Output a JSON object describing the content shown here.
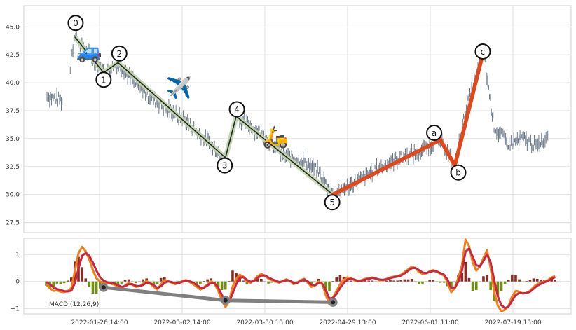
{
  "chart_data": [
    {
      "type": "candlestick",
      "panel": "price",
      "y_ticks": [
        "45.0",
        "42.5",
        "40.0",
        "37.5",
        "35.0",
        "32.5",
        "30.0",
        "27.5"
      ],
      "ylim": [
        26.6,
        46.9
      ],
      "grid": true,
      "wave_labels": [
        "0",
        "1",
        "2",
        "3",
        "4",
        "5",
        "a",
        "b",
        "c"
      ],
      "impulse_wave": [
        {
          "label": "0",
          "x": 8,
          "y": 44.1
        },
        {
          "label": "1",
          "x": 16,
          "y": 40.9
        },
        {
          "label": "2",
          "x": 20,
          "y": 41.8
        },
        {
          "label": "3",
          "x": 50,
          "y": 33.3
        },
        {
          "label": "4",
          "x": 53,
          "y": 37.0
        },
        {
          "label": "5",
          "x": 80,
          "y": 30.0
        }
      ],
      "corrective_wave": [
        {
          "label": "5",
          "x": 80,
          "y": 30.0
        },
        {
          "label": "a",
          "x": 110,
          "y": 34.9
        },
        {
          "label": "b",
          "x": 114,
          "y": 32.6
        },
        {
          "label": "c",
          "x": 122,
          "y": 42.8
        }
      ],
      "emoji_annotations": [
        {
          "symbol": "🚙",
          "x": 12,
          "y": 42.9
        },
        {
          "symbol": "✈️",
          "x": 37,
          "y": 39.6
        },
        {
          "symbol": "🛵",
          "x": 64,
          "y": 35.2
        }
      ],
      "colors": {
        "candle": "#5c6b7d",
        "impulse_line": "#1b2a1b",
        "impulse_band": "#c5d3b0",
        "corrective_line": "#e0471a",
        "grid": "#dcdcdc",
        "frame": "#d0d0d0"
      }
    },
    {
      "type": "line",
      "panel": "macd",
      "y_ticks": [
        "1",
        "0",
        "−1"
      ],
      "ylim": [
        -1.2,
        1.6
      ],
      "legend_text": "MACD (12,26,9)",
      "x_tick_labels": [
        "2022-01-26 14:00",
        "2022-03-02 14:00",
        "2022-03-30 13:00",
        "2022-04-29 13:00",
        "2022-06-01 11:00",
        "2022-07-19 13:00"
      ],
      "series": [
        {
          "key": "macd",
          "color": "#f07e1e",
          "values": [
            -0.12,
            -0.25,
            -0.35,
            -0.33,
            -0.38,
            -0.4,
            -0.35,
            -0.25,
            0.4,
            1.05,
            1.28,
            1.12,
            0.82,
            0.42,
            0.12,
            0.0,
            -0.05,
            -0.06,
            -0.08,
            -0.12,
            -0.2,
            -0.25,
            -0.15,
            -0.05,
            -0.12,
            -0.2,
            -0.18,
            -0.08,
            0.02,
            -0.08,
            -0.2,
            -0.3,
            -0.1,
            0.05,
            0.02,
            -0.05,
            -0.1,
            -0.05,
            0.02,
            0.05,
            -0.02,
            -0.1,
            -0.2,
            -0.3,
            -0.22,
            -0.1,
            0.02,
            -0.1,
            -0.35,
            -0.7,
            -0.95,
            -0.75,
            -0.2,
            0.1,
            0.25,
            0.18,
            0.0,
            -0.05,
            0.05,
            0.2,
            0.28,
            0.22,
            0.1,
            0.05,
            0.0,
            -0.05,
            0.02,
            0.08,
            0.02,
            -0.1,
            -0.05,
            0.05,
            0.1,
            -0.05,
            -0.2,
            -0.15,
            0.0,
            -0.1,
            -0.5,
            -0.85,
            -0.6,
            -0.35,
            -0.1,
            0.05,
            0.15,
            0.12,
            0.05,
            0.0,
            0.05,
            0.1,
            0.12,
            0.15,
            0.1,
            0.05,
            0.05,
            0.1,
            0.15,
            0.18,
            0.2,
            0.25,
            0.35,
            0.45,
            0.55,
            0.5,
            0.35,
            0.28,
            0.3,
            0.38,
            0.42,
            0.36,
            0.28,
            0.22,
            -0.05,
            -0.4,
            -0.25,
            0.15,
            0.6,
            1.55,
            1.3,
            0.7,
            0.4,
            0.55,
            0.88,
            1.15,
            0.5,
            -0.4,
            -0.9,
            -1.1,
            -1.05,
            -0.9,
            -0.55,
            -0.35,
            -0.38,
            -0.45,
            -0.42,
            -0.35,
            -0.2,
            -0.1,
            -0.05,
            0.0,
            0.05,
            0.15,
            0.2
          ]
        },
        {
          "key": "signal",
          "color": "#c8283c",
          "values": [
            -0.02,
            -0.1,
            -0.22,
            -0.28,
            -0.32,
            -0.36,
            -0.37,
            -0.34,
            -0.06,
            0.48,
            0.95,
            1.05,
            0.95,
            0.7,
            0.4,
            0.16,
            0.03,
            -0.03,
            -0.05,
            -0.08,
            -0.14,
            -0.2,
            -0.18,
            -0.1,
            -0.1,
            -0.16,
            -0.18,
            -0.13,
            -0.05,
            -0.06,
            -0.14,
            -0.24,
            -0.18,
            -0.05,
            0.0,
            -0.02,
            -0.07,
            -0.06,
            -0.01,
            0.03,
            0.01,
            -0.05,
            -0.13,
            -0.23,
            -0.23,
            -0.15,
            -0.05,
            -0.07,
            -0.23,
            -0.5,
            -0.76,
            -0.76,
            -0.45,
            -0.1,
            0.13,
            0.16,
            0.06,
            -0.01,
            0.02,
            0.13,
            0.22,
            0.22,
            0.15,
            0.08,
            0.03,
            -0.02,
            0.0,
            0.05,
            0.03,
            -0.05,
            -0.05,
            0.02,
            0.07,
            0.0,
            -0.12,
            -0.14,
            -0.06,
            -0.08,
            -0.32,
            -0.63,
            -0.61,
            -0.46,
            -0.24,
            -0.06,
            0.07,
            0.1,
            0.07,
            0.02,
            0.03,
            0.07,
            0.1,
            0.13,
            0.11,
            0.07,
            0.06,
            0.08,
            0.12,
            0.16,
            0.18,
            0.22,
            0.3,
            0.4,
            0.49,
            0.5,
            0.42,
            0.33,
            0.31,
            0.35,
            0.39,
            0.37,
            0.31,
            0.25,
            0.06,
            -0.24,
            -0.25,
            0.0,
            0.4,
            1.1,
            1.22,
            0.92,
            0.6,
            0.56,
            0.76,
            1.0,
            0.7,
            0.05,
            -0.55,
            -0.88,
            -0.99,
            -0.93,
            -0.71,
            -0.5,
            -0.43,
            -0.44,
            -0.43,
            -0.38,
            -0.27,
            -0.16,
            -0.09,
            -0.03,
            0.02,
            0.1,
            0.16
          ]
        }
      ],
      "histogram_colors": {
        "positive": "#8b2a22",
        "negative": "#6f8f10"
      },
      "divergence_line": {
        "color": "#808080",
        "points": [
          {
            "x": 16,
            "y": -0.22
          },
          {
            "x": 50,
            "y": -0.7
          },
          {
            "x": 80,
            "y": -0.77
          }
        ]
      },
      "grid": true
    }
  ]
}
